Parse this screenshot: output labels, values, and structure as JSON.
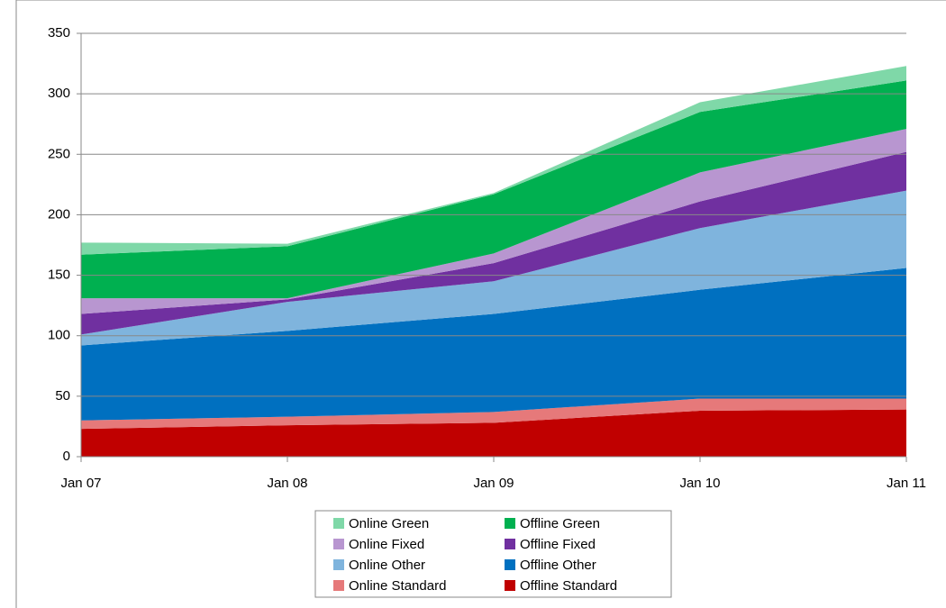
{
  "chart_data": {
    "type": "stacked-area",
    "categories": [
      "Jan 07",
      "Jan 08",
      "Jan 09",
      "Jan 10",
      "Jan 11"
    ],
    "series": [
      {
        "name": "Offline Standard",
        "color": "#c00000",
        "values": [
          23,
          26,
          28,
          38,
          39
        ]
      },
      {
        "name": "Online Standard",
        "color": "#e6797a",
        "values": [
          7,
          7,
          9,
          10,
          9
        ]
      },
      {
        "name": "Offline Other",
        "color": "#0070c0",
        "values": [
          62,
          71,
          81,
          90,
          108
        ]
      },
      {
        "name": "Online Other",
        "color": "#7fb4dd",
        "values": [
          9,
          24,
          27,
          51,
          64
        ]
      },
      {
        "name": "Offline Fixed",
        "color": "#7030a0",
        "values": [
          17,
          2,
          15,
          22,
          32
        ]
      },
      {
        "name": "Online Fixed",
        "color": "#b896d0",
        "values": [
          13,
          1,
          8,
          24,
          19
        ]
      },
      {
        "name": "Offline Green",
        "color": "#00b050",
        "values": [
          36,
          43,
          49,
          50,
          40
        ]
      },
      {
        "name": "Online Green",
        "color": "#7fd8a8",
        "values": [
          10,
          2,
          1,
          8,
          12
        ]
      }
    ],
    "ylim": [
      0,
      350
    ],
    "yticks": [
      0,
      50,
      100,
      150,
      200,
      250,
      300,
      350
    ],
    "grid": true
  }
}
